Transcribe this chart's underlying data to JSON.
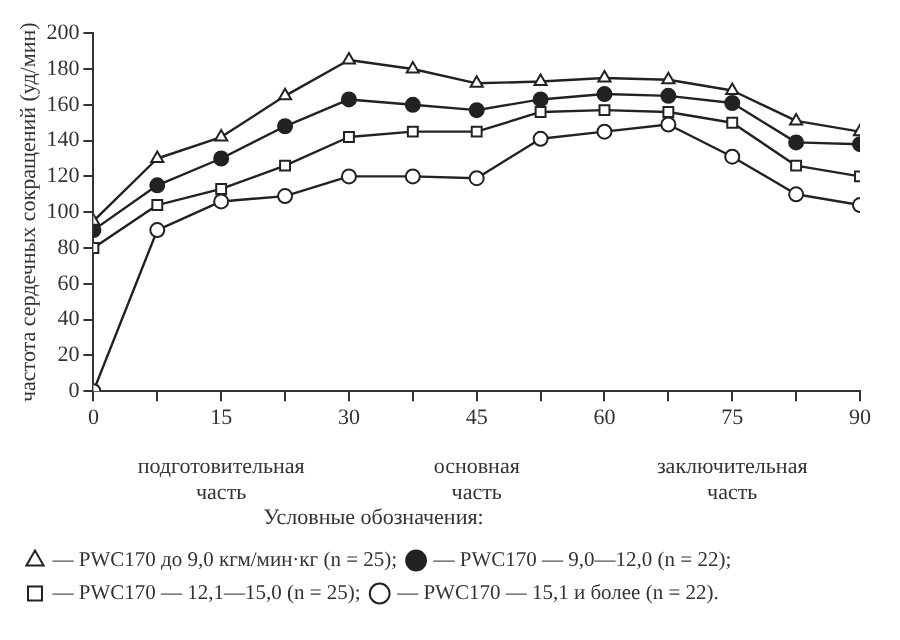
{
  "chart_data": {
    "type": "line",
    "ylabel": "частота сердечных сокращений (уд/мин)",
    "legend_title": "Условные обозначения:",
    "x": [
      0,
      7.5,
      15,
      22.5,
      30,
      37.5,
      45,
      52.5,
      60,
      67.5,
      75,
      82.5,
      90
    ],
    "xlim": [
      0,
      90
    ],
    "xticks": [
      0,
      {
        "value": 7.5,
        "label": null
      },
      15,
      {
        "value": 22.5,
        "label": null
      },
      30,
      {
        "value": 37.5,
        "label": null
      },
      45,
      {
        "value": 52.5,
        "label": null
      },
      60,
      {
        "value": 67.5,
        "label": null
      },
      75,
      {
        "value": 82.5,
        "label": null
      },
      90
    ],
    "ylim": [
      0,
      200
    ],
    "yticks": [
      0,
      20,
      40,
      60,
      80,
      100,
      120,
      140,
      160,
      180,
      200
    ],
    "grid": false,
    "legend": "bottom",
    "line_style": "solid",
    "annotations": [
      "подготовительная\nчасть",
      "основная\nчасть",
      "заключительная\nчасть"
    ],
    "series": [
      {
        "name": "— PWC170 до 9,0 кгм/мин·кг (n = 25);",
        "color": "#222222",
        "marker": "triangle",
        "colors": [
          "#ffffff",
          "#ffffff",
          "#ffffff",
          "#ffffff",
          "#ffffff",
          "#ffffff",
          "#ffffff",
          "#ffffff",
          "#ffffff",
          "#ffffff",
          "#ffffff",
          "#ffffff",
          "#ffffff"
        ],
        "values": [
          95,
          130,
          142,
          165,
          185,
          180,
          172,
          173,
          175,
          174,
          168,
          151,
          145
        ]
      },
      {
        "name": "— PWC170 — 9,0—12,0 (n = 22);",
        "color": "#222222",
        "marker": "circle",
        "colors": [
          "#222222",
          "#222222",
          "#222222",
          "#222222",
          "#222222",
          "#222222",
          "#222222",
          "#222222",
          "#222222",
          "#222222",
          "#222222",
          "#222222",
          "#222222"
        ],
        "values": [
          90,
          115,
          130,
          148,
          163,
          160,
          157,
          163,
          166,
          165,
          161,
          139,
          138
        ]
      },
      {
        "name": "— PWC170 — 12,1—15,0 (n = 25);",
        "color": "#222222",
        "marker": "square",
        "colors": [
          "#ffffff",
          "#ffffff",
          "#ffffff",
          "#ffffff",
          "#ffffff",
          "#ffffff",
          "#ffffff",
          "#ffffff",
          "#ffffff",
          "#ffffff",
          "#ffffff",
          "#ffffff",
          "#ffffff"
        ],
        "values": [
          80,
          104,
          113,
          126,
          142,
          145,
          145,
          156,
          157,
          156,
          150,
          126,
          120
        ]
      },
      {
        "name": "— PWC170 — 15,1 и более (n = 22).",
        "color": "#222222",
        "marker": "circle",
        "colors": [
          "#ffffff",
          "#ffffff",
          "#ffffff",
          "#ffffff",
          "#ffffff",
          "#ffffff",
          "#ffffff",
          "#ffffff",
          "#ffffff",
          "#ffffff",
          "#ffffff",
          "#ffffff",
          "#ffffff"
        ],
        "values": [
          0,
          90,
          106,
          109,
          120,
          120,
          119,
          141,
          145,
          149,
          131,
          110,
          104
        ]
      }
    ]
  }
}
